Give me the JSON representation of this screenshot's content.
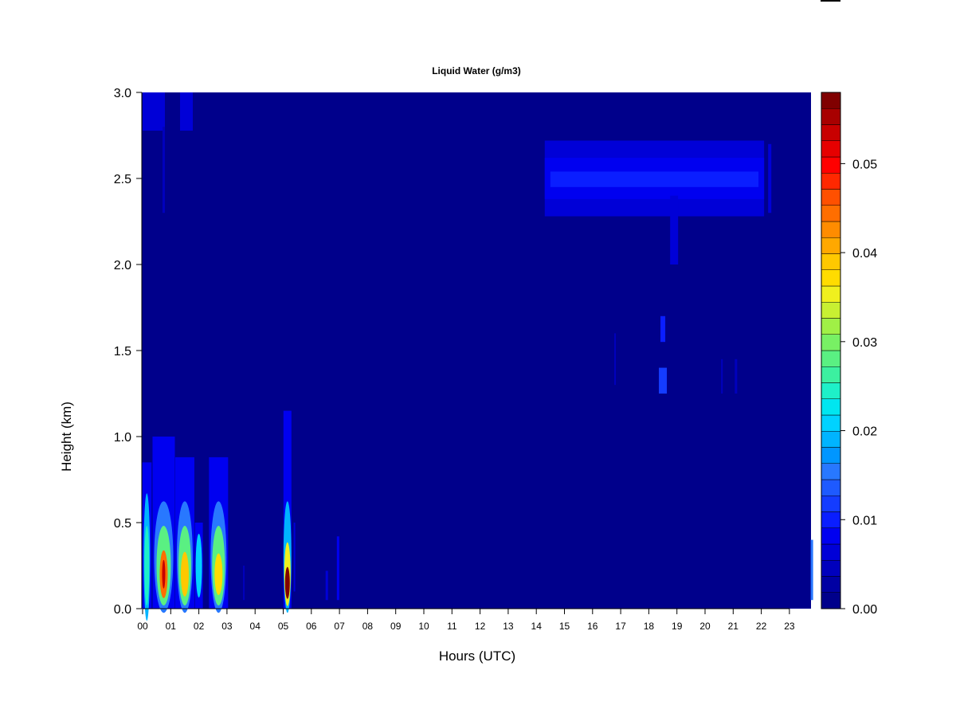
{
  "chart_data": {
    "type": "heatmap",
    "title": "Liquid Water (g/m3)",
    "xlabel": "Hours (UTC)",
    "ylabel": "Height (km)",
    "x_ticks": [
      "00",
      "01",
      "02",
      "03",
      "04",
      "05",
      "06",
      "07",
      "08",
      "09",
      "10",
      "11",
      "12",
      "13",
      "14",
      "15",
      "16",
      "17",
      "18",
      "19",
      "20",
      "21",
      "22",
      "23"
    ],
    "xlim": [
      0,
      24
    ],
    "y_ticks": [
      "0.0",
      "0.5",
      "1.0",
      "1.5",
      "2.0",
      "2.5",
      "3.0"
    ],
    "ylim": [
      0,
      3
    ],
    "colorbar": {
      "ticks": [
        "0.00",
        "0.01",
        "0.02",
        "0.03",
        "0.04",
        "0.05"
      ],
      "range": [
        0,
        0.058
      ],
      "colors": [
        "#00008b",
        "#0000a3",
        "#0000bd",
        "#0000d7",
        "#0000f0",
        "#0a1eff",
        "#143cff",
        "#1e5aff",
        "#2878ff",
        "#0096ff",
        "#00b4ff",
        "#00d2ff",
        "#00e6f0",
        "#1ef0c8",
        "#3cf0a0",
        "#5af082",
        "#78f064",
        "#a0f046",
        "#c8f032",
        "#f0f01e",
        "#ffdc00",
        "#ffc800",
        "#ffa800",
        "#ff8c00",
        "#ff6e00",
        "#ff5000",
        "#ff2800",
        "#ff0000",
        "#e60000",
        "#c80000",
        "#a80000",
        "#800000"
      ]
    },
    "features": [
      {
        "x": 0.05,
        "y": 2.9,
        "value": 0.007,
        "note": "near-top patches around 00-01 UTC"
      },
      {
        "x": 0.75,
        "y": 0.2,
        "value": 0.055,
        "note": "low cloud water maximum near 00:45 UTC"
      },
      {
        "x": 1.5,
        "y": 0.2,
        "value": 0.04
      },
      {
        "x": 2.7,
        "y": 0.2,
        "value": 0.037
      },
      {
        "x": 5.15,
        "y": 0.15,
        "value": 0.058,
        "note": "peak near 05 UTC"
      },
      {
        "x": 18.3,
        "y": 2.5,
        "value": 0.008,
        "note": "elevated layer 14:20-22:00 UTC"
      },
      {
        "x": 18.5,
        "y": 1.3,
        "value": 0.01
      },
      {
        "x": 23.8,
        "y": 0.2,
        "value": 0.015
      }
    ]
  }
}
